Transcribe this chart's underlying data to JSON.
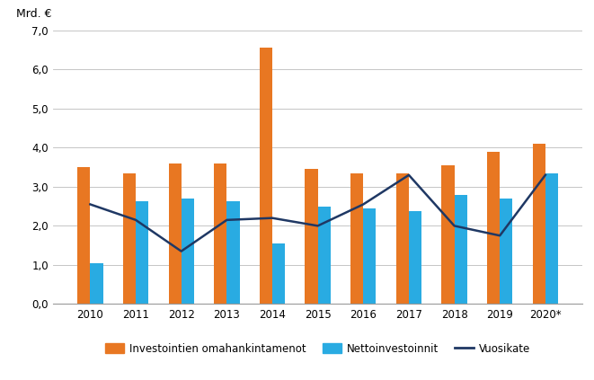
{
  "years": [
    "2010",
    "2011",
    "2012",
    "2013",
    "2014",
    "2015",
    "2016",
    "2017",
    "2018",
    "2019",
    "2020*"
  ],
  "omahankintamenot": [
    3.5,
    3.35,
    3.6,
    3.6,
    6.55,
    3.45,
    3.35,
    3.35,
    3.55,
    3.9,
    4.1
  ],
  "nettoinvestoinnit": [
    1.05,
    2.62,
    2.7,
    2.63,
    1.55,
    2.5,
    2.45,
    2.38,
    2.78,
    2.7,
    3.35
  ],
  "vuosikate": [
    2.55,
    2.15,
    1.35,
    2.15,
    2.2,
    2.0,
    2.55,
    3.3,
    2.0,
    1.75,
    3.3
  ],
  "bar_color_orange": "#E87722",
  "bar_color_blue": "#29ABE2",
  "line_color": "#1F3864",
  "ylabel": "Mrd. €",
  "ylim": [
    0,
    7.0
  ],
  "yticks": [
    0.0,
    1.0,
    2.0,
    3.0,
    4.0,
    5.0,
    6.0,
    7.0
  ],
  "ytick_labels": [
    "0,0",
    "1,0",
    "2,0",
    "3,0",
    "4,0",
    "5,0",
    "6,0",
    "7,0"
  ],
  "legend_labels": [
    "Investointien omahankintamenot",
    "Nettoinvestoinnit",
    "Vuosikate"
  ],
  "background_color": "#ffffff",
  "grid_color": "#bbbbbb"
}
